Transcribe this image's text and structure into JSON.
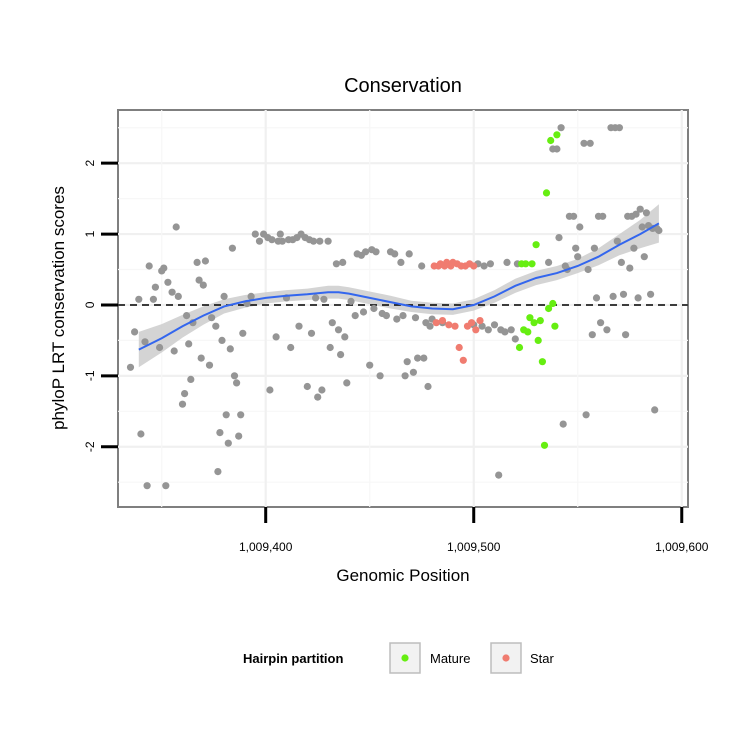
{
  "chart_data": {
    "type": "scatter",
    "title": "Conservation",
    "xlabel": "Genomic Position",
    "ylabel": "phyloP LRT conservation scores",
    "xlim": [
      1009329,
      1009603
    ],
    "ylim": [
      -2.85,
      2.75
    ],
    "x_ticks": [
      1009400,
      1009500,
      1009600
    ],
    "x_tick_labels": [
      "1,009,400",
      "1,009,500",
      "1,009,600"
    ],
    "y_ticks": [
      -2,
      -1,
      0,
      1,
      2
    ],
    "y_tick_labels": [
      "-2",
      "-1",
      "0",
      "1",
      "2"
    ],
    "grid": true,
    "reference_line": {
      "y": 0,
      "style": "dashed",
      "color": "#000000"
    },
    "legend": {
      "title": "Hairpin partition",
      "position": "bottom",
      "entries": [
        {
          "label": "Mature",
          "color": "#66ee11"
        },
        {
          "label": "Star",
          "color": "#f07c70"
        }
      ]
    },
    "colors": {
      "other": "#959595",
      "Mature": "#66ee11",
      "Star": "#f07c70",
      "smooth": "#3366ee",
      "ribbon": "#cccccc"
    },
    "series": [
      {
        "name": "Other",
        "color": "#959595",
        "points": [
          [
            1009335,
            -0.88
          ],
          [
            1009337,
            -0.38
          ],
          [
            1009339,
            0.08
          ],
          [
            1009340,
            -1.82
          ],
          [
            1009342,
            -0.52
          ],
          [
            1009343,
            -2.55
          ],
          [
            1009344,
            0.55
          ],
          [
            1009346,
            0.08
          ],
          [
            1009347,
            0.25
          ],
          [
            1009349,
            -0.6
          ],
          [
            1009350,
            0.48
          ],
          [
            1009351,
            0.52
          ],
          [
            1009352,
            -2.55
          ],
          [
            1009353,
            0.32
          ],
          [
            1009355,
            0.18
          ],
          [
            1009356,
            -0.65
          ],
          [
            1009357,
            1.1
          ],
          [
            1009358,
            0.12
          ],
          [
            1009360,
            -1.4
          ],
          [
            1009361,
            -1.25
          ],
          [
            1009362,
            -0.15
          ],
          [
            1009363,
            -0.55
          ],
          [
            1009364,
            -1.05
          ],
          [
            1009365,
            -0.25
          ],
          [
            1009367,
            0.6
          ],
          [
            1009368,
            0.35
          ],
          [
            1009369,
            -0.75
          ],
          [
            1009370,
            0.28
          ],
          [
            1009371,
            0.62
          ],
          [
            1009373,
            -0.85
          ],
          [
            1009374,
            -0.18
          ],
          [
            1009376,
            -0.3
          ],
          [
            1009377,
            -2.35
          ],
          [
            1009378,
            -1.8
          ],
          [
            1009379,
            -0.5
          ],
          [
            1009380,
            0.12
          ],
          [
            1009381,
            -1.55
          ],
          [
            1009382,
            -1.95
          ],
          [
            1009383,
            -0.62
          ],
          [
            1009384,
            0.8
          ],
          [
            1009385,
            -1.0
          ],
          [
            1009386,
            -1.1
          ],
          [
            1009387,
            -1.85
          ],
          [
            1009388,
            -1.55
          ],
          [
            1009389,
            -0.4
          ],
          [
            1009391,
            0.02
          ],
          [
            1009393,
            0.12
          ],
          [
            1009395,
            1.0
          ],
          [
            1009397,
            0.9
          ],
          [
            1009399,
            1.0
          ],
          [
            1009401,
            0.95
          ],
          [
            1009402,
            -1.2
          ],
          [
            1009403,
            0.92
          ],
          [
            1009405,
            -0.45
          ],
          [
            1009406,
            0.9
          ],
          [
            1009407,
            1.0
          ],
          [
            1009408,
            0.9
          ],
          [
            1009410,
            0.1
          ],
          [
            1009411,
            0.92
          ],
          [
            1009412,
            -0.6
          ],
          [
            1009413,
            0.92
          ],
          [
            1009415,
            0.95
          ],
          [
            1009416,
            -0.3
          ],
          [
            1009417,
            1.0
          ],
          [
            1009419,
            0.95
          ],
          [
            1009420,
            -1.15
          ],
          [
            1009421,
            0.92
          ],
          [
            1009422,
            -0.4
          ],
          [
            1009423,
            0.9
          ],
          [
            1009424,
            0.1
          ],
          [
            1009425,
            -1.3
          ],
          [
            1009426,
            0.9
          ],
          [
            1009427,
            -1.2
          ],
          [
            1009428,
            0.08
          ],
          [
            1009430,
            0.9
          ],
          [
            1009431,
            -0.6
          ],
          [
            1009432,
            -0.25
          ],
          [
            1009434,
            0.58
          ],
          [
            1009435,
            -0.35
          ],
          [
            1009436,
            -0.7
          ],
          [
            1009437,
            0.6
          ],
          [
            1009438,
            -0.45
          ],
          [
            1009439,
            -1.1
          ],
          [
            1009441,
            0.05
          ],
          [
            1009443,
            -0.15
          ],
          [
            1009444,
            0.72
          ],
          [
            1009446,
            0.7
          ],
          [
            1009447,
            -0.1
          ],
          [
            1009448,
            0.75
          ],
          [
            1009450,
            -0.85
          ],
          [
            1009451,
            0.78
          ],
          [
            1009452,
            -0.05
          ],
          [
            1009453,
            0.75
          ],
          [
            1009455,
            -1.0
          ],
          [
            1009456,
            -0.12
          ],
          [
            1009458,
            -0.15
          ],
          [
            1009460,
            0.75
          ],
          [
            1009462,
            0.72
          ],
          [
            1009463,
            -0.2
          ],
          [
            1009465,
            0.6
          ],
          [
            1009466,
            -0.15
          ],
          [
            1009467,
            -1.0
          ],
          [
            1009468,
            -0.8
          ],
          [
            1009469,
            0.72
          ],
          [
            1009471,
            -0.95
          ],
          [
            1009472,
            -0.18
          ],
          [
            1009473,
            -0.75
          ],
          [
            1009475,
            0.55
          ],
          [
            1009476,
            -0.75
          ],
          [
            1009477,
            -0.25
          ],
          [
            1009478,
            -1.15
          ],
          [
            1009479,
            -0.3
          ],
          [
            1009480,
            -0.2
          ],
          [
            1009485,
            -0.25
          ],
          [
            1009500,
            -0.28
          ],
          [
            1009502,
            0.58
          ],
          [
            1009504,
            -0.3
          ],
          [
            1009505,
            0.55
          ],
          [
            1009507,
            -0.35
          ],
          [
            1009508,
            0.58
          ],
          [
            1009510,
            -0.28
          ],
          [
            1009512,
            -2.4
          ],
          [
            1009513,
            -0.35
          ],
          [
            1009515,
            -0.38
          ],
          [
            1009516,
            0.6
          ],
          [
            1009518,
            -0.35
          ],
          [
            1009520,
            -0.48
          ],
          [
            1009521,
            0.58
          ],
          [
            1009536,
            0.6
          ],
          [
            1009538,
            2.2
          ],
          [
            1009540,
            2.2
          ],
          [
            1009541,
            0.95
          ],
          [
            1009542,
            2.5
          ],
          [
            1009543,
            -1.68
          ],
          [
            1009544,
            0.55
          ],
          [
            1009545,
            0.5
          ],
          [
            1009546,
            1.25
          ],
          [
            1009548,
            1.25
          ],
          [
            1009549,
            0.8
          ],
          [
            1009550,
            0.68
          ],
          [
            1009551,
            1.1
          ],
          [
            1009553,
            2.28
          ],
          [
            1009554,
            -1.55
          ],
          [
            1009555,
            0.5
          ],
          [
            1009556,
            2.28
          ],
          [
            1009557,
            -0.42
          ],
          [
            1009558,
            0.8
          ],
          [
            1009559,
            0.1
          ],
          [
            1009560,
            1.25
          ],
          [
            1009561,
            -0.25
          ],
          [
            1009562,
            1.25
          ],
          [
            1009564,
            -0.35
          ],
          [
            1009566,
            2.5
          ],
          [
            1009567,
            0.12
          ],
          [
            1009568,
            2.5
          ],
          [
            1009569,
            0.9
          ],
          [
            1009570,
            2.5
          ],
          [
            1009571,
            0.6
          ],
          [
            1009572,
            0.15
          ],
          [
            1009573,
            -0.42
          ],
          [
            1009574,
            1.25
          ],
          [
            1009575,
            0.52
          ],
          [
            1009576,
            1.25
          ],
          [
            1009577,
            0.8
          ],
          [
            1009578,
            1.28
          ],
          [
            1009579,
            0.1
          ],
          [
            1009580,
            1.35
          ],
          [
            1009581,
            1.1
          ],
          [
            1009582,
            0.68
          ],
          [
            1009583,
            1.3
          ],
          [
            1009584,
            1.12
          ],
          [
            1009585,
            0.15
          ],
          [
            1009586,
            1.08
          ],
          [
            1009587,
            -1.48
          ],
          [
            1009588,
            1.08
          ],
          [
            1009589,
            1.05
          ]
        ]
      },
      {
        "name": "Mature",
        "color": "#66ee11",
        "points": [
          [
            1009522,
            -0.6
          ],
          [
            1009523,
            0.58
          ],
          [
            1009524,
            -0.35
          ],
          [
            1009525,
            0.58
          ],
          [
            1009526,
            -0.38
          ],
          [
            1009527,
            -0.18
          ],
          [
            1009528,
            0.58
          ],
          [
            1009529,
            -0.25
          ],
          [
            1009530,
            0.85
          ],
          [
            1009531,
            -0.5
          ],
          [
            1009532,
            -0.22
          ],
          [
            1009533,
            -0.8
          ],
          [
            1009534,
            -1.98
          ],
          [
            1009535,
            1.58
          ],
          [
            1009536,
            -0.05
          ],
          [
            1009537,
            2.32
          ],
          [
            1009538,
            0.02
          ],
          [
            1009539,
            -0.3
          ],
          [
            1009540,
            2.4
          ]
        ]
      },
      {
        "name": "Star",
        "color": "#f07c70",
        "points": [
          [
            1009481,
            0.55
          ],
          [
            1009482,
            -0.25
          ],
          [
            1009483,
            0.55
          ],
          [
            1009484,
            0.58
          ],
          [
            1009485,
            -0.22
          ],
          [
            1009486,
            0.55
          ],
          [
            1009487,
            0.6
          ],
          [
            1009488,
            -0.28
          ],
          [
            1009489,
            0.55
          ],
          [
            1009490,
            0.6
          ],
          [
            1009491,
            -0.3
          ],
          [
            1009492,
            0.58
          ],
          [
            1009493,
            -0.6
          ],
          [
            1009494,
            0.55
          ],
          [
            1009495,
            -0.78
          ],
          [
            1009496,
            0.55
          ],
          [
            1009497,
            -0.3
          ],
          [
            1009498,
            0.58
          ],
          [
            1009499,
            -0.25
          ],
          [
            1009500,
            0.55
          ],
          [
            1009501,
            -0.35
          ],
          [
            1009503,
            -0.22
          ]
        ]
      }
    ],
    "smooth": {
      "method": "loess",
      "x": [
        1009339,
        1009350,
        1009360,
        1009370,
        1009380,
        1009390,
        1009400,
        1009410,
        1009420,
        1009430,
        1009435,
        1009440,
        1009450,
        1009460,
        1009470,
        1009480,
        1009490,
        1009500,
        1009510,
        1009520,
        1009530,
        1009540,
        1009550,
        1009560,
        1009570,
        1009580,
        1009589
      ],
      "y": [
        -0.63,
        -0.47,
        -0.3,
        -0.15,
        -0.02,
        0.05,
        0.1,
        0.13,
        0.15,
        0.18,
        0.18,
        0.16,
        0.1,
        0.04,
        -0.02,
        -0.05,
        -0.06,
        0.0,
        0.12,
        0.27,
        0.38,
        0.45,
        0.55,
        0.68,
        0.85,
        1.0,
        1.15
      ],
      "ci_half": [
        0.25,
        0.2,
        0.16,
        0.13,
        0.1,
        0.09,
        0.08,
        0.08,
        0.08,
        0.09,
        0.09,
        0.09,
        0.09,
        0.09,
        0.08,
        0.08,
        0.08,
        0.08,
        0.09,
        0.1,
        0.1,
        0.1,
        0.1,
        0.12,
        0.15,
        0.2,
        0.27
      ]
    }
  }
}
